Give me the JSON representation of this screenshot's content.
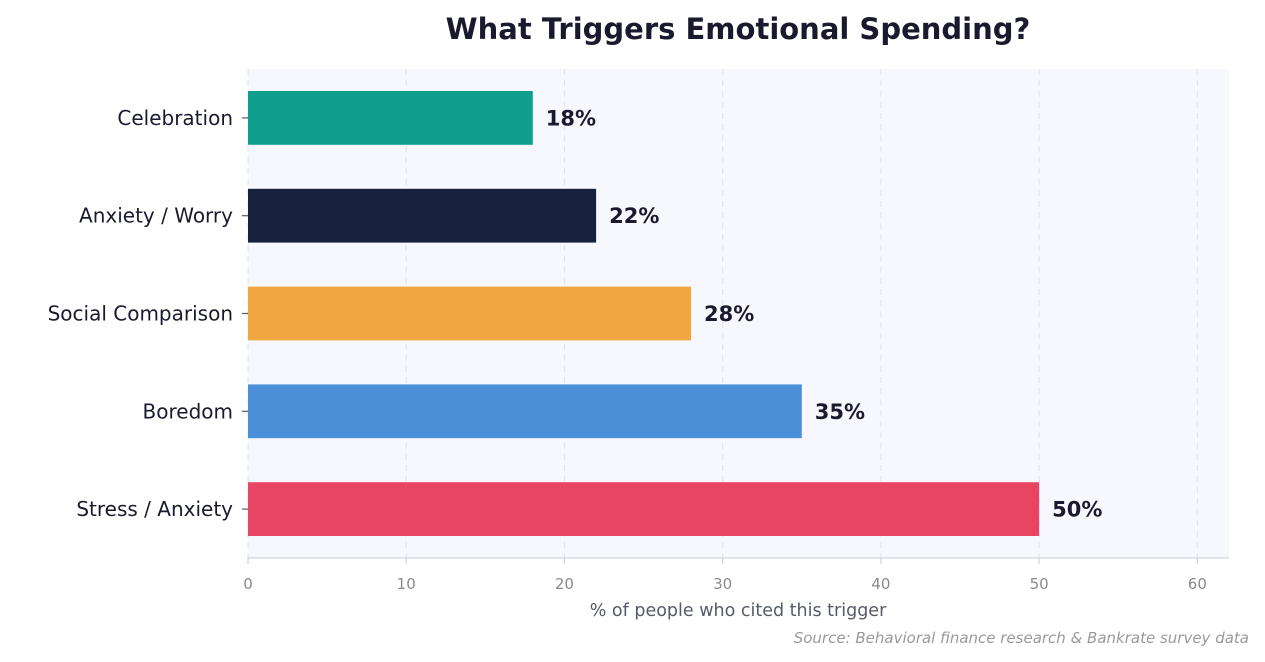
{
  "chart_data": {
    "type": "bar",
    "orientation": "horizontal",
    "title": "What Triggers Emotional Spending?",
    "xlabel": "% of people who cited this trigger",
    "ylabel": "",
    "categories": [
      "Stress / Anxiety",
      "Boredom",
      "Social Comparison",
      "Anxiety / Worry",
      "Celebration"
    ],
    "values": [
      50,
      35,
      28,
      22,
      18
    ],
    "value_labels": [
      "50%",
      "35%",
      "28%",
      "22%",
      "18%"
    ],
    "colors": [
      "#e84562",
      "#4a8fd8",
      "#f2a641",
      "#17213d",
      "#109e8e"
    ],
    "xlim": [
      0,
      62
    ],
    "xticks": [
      0,
      10,
      20,
      30,
      40,
      50,
      60
    ],
    "grid": "vertical dashed",
    "legend": "none",
    "source": "Source: Behavioral finance research & Bankrate survey data"
  }
}
